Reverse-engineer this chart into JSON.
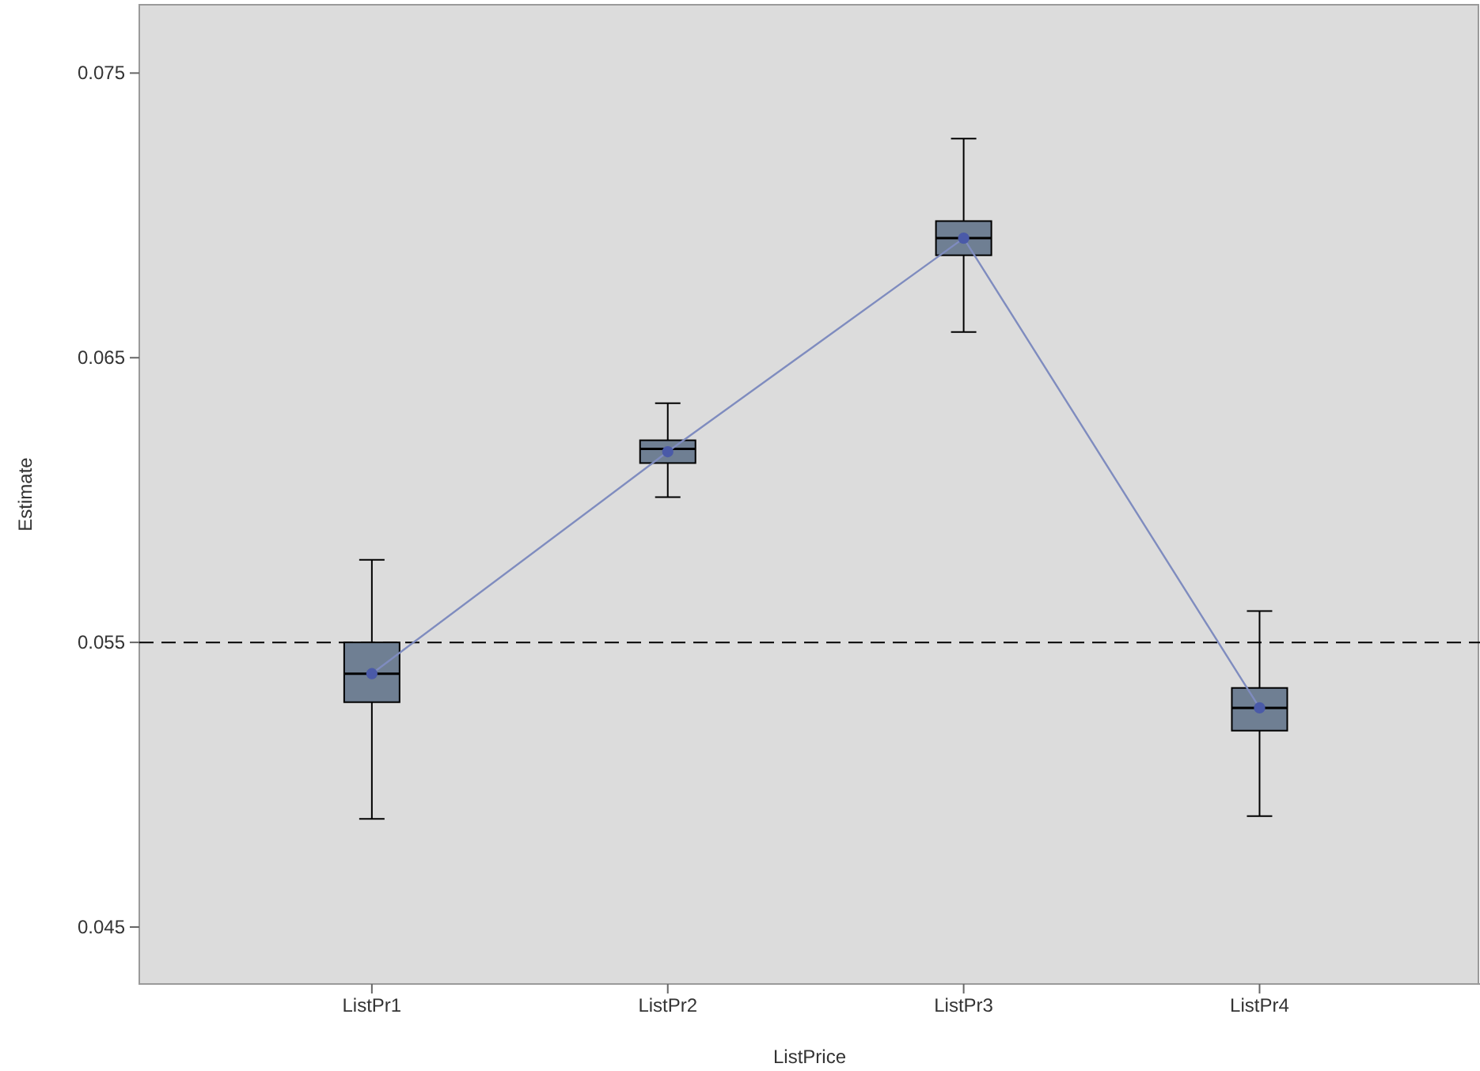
{
  "chart_data": {
    "type": "box",
    "xlabel": "ListPrice",
    "ylabel": "Estimate",
    "categories": [
      "ListPr1",
      "ListPr2",
      "ListPr3",
      "ListPr4"
    ],
    "boxes": [
      {
        "low": 0.0488,
        "q1": 0.0529,
        "median": 0.0539,
        "q3": 0.055,
        "high": 0.0579
      },
      {
        "low": 0.0601,
        "q1": 0.0613,
        "median": 0.0618,
        "q3": 0.0621,
        "high": 0.0634
      },
      {
        "low": 0.0659,
        "q1": 0.0686,
        "median": 0.0692,
        "q3": 0.0698,
        "high": 0.0727
      },
      {
        "low": 0.0489,
        "q1": 0.0519,
        "median": 0.0527,
        "q3": 0.0534,
        "high": 0.0561
      }
    ],
    "color": "#6f7f93",
    "series": [
      {
        "type": "line",
        "color": "#7f8cbf",
        "values": [
          0.0539,
          0.0617,
          0.0692,
          0.0527
        ],
        "marker": "circle"
      }
    ],
    "ylim": [
      0.043,
      0.0774
    ],
    "yticks": [
      0.045,
      0.055,
      0.065,
      0.075
    ],
    "ref_lines": [
      {
        "axis": "y",
        "value": 0.055,
        "line_style": "dashed",
        "color": "#000000"
      }
    ]
  }
}
